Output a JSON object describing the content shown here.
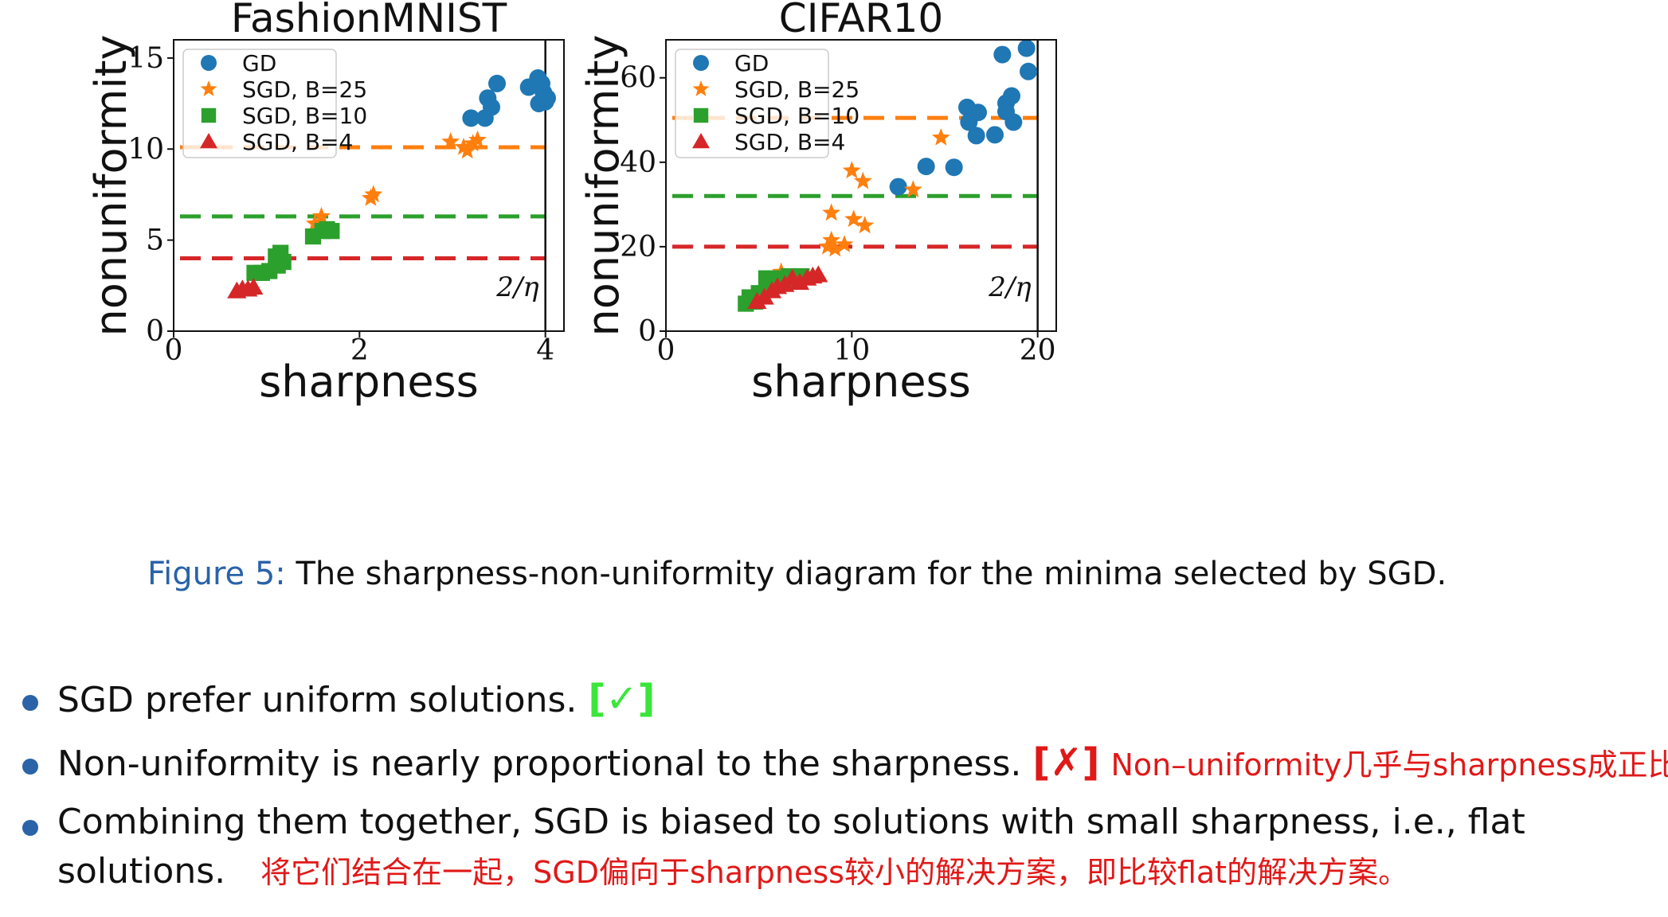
{
  "chart_data": [
    {
      "type": "scatter",
      "title": "FashionMNIST",
      "xlabel": "sharpness",
      "ylabel": "nonuniformity",
      "xlim": [
        0,
        4.2
      ],
      "ylim": [
        0,
        16
      ],
      "xticks": [
        0,
        2,
        4
      ],
      "yticks": [
        0,
        5,
        10,
        15
      ],
      "grid": false,
      "legend_position": "top-left",
      "vline": {
        "x": 4,
        "label": "2/η"
      },
      "hlines": [
        {
          "y": 10.1,
          "color": "#ff7f0e"
        },
        {
          "y": 6.3,
          "color": "#2ca02c"
        },
        {
          "y": 4.0,
          "color": "#d62728"
        }
      ],
      "series": [
        {
          "name": "GD",
          "marker": "circle",
          "color": "#1f77b4",
          "points": [
            [
              3.2,
              11.7
            ],
            [
              3.35,
              11.7
            ],
            [
              3.38,
              12.8
            ],
            [
              3.42,
              12.3
            ],
            [
              3.48,
              13.6
            ],
            [
              3.82,
              13.4
            ],
            [
              3.92,
              13.9
            ],
            [
              3.98,
              13.1
            ],
            [
              4.0,
              12.6
            ],
            [
              3.93,
              12.5
            ],
            [
              3.96,
              13.6
            ],
            [
              4.02,
              12.8
            ]
          ]
        },
        {
          "name": "SGD, B=25",
          "marker": "star",
          "color": "#ff7f0e",
          "points": [
            [
              1.52,
              5.9
            ],
            [
              1.59,
              6.3
            ],
            [
              2.12,
              7.3
            ],
            [
              2.15,
              7.5
            ],
            [
              2.98,
              10.4
            ],
            [
              3.12,
              10.1
            ],
            [
              3.16,
              9.9
            ],
            [
              3.22,
              10.3
            ],
            [
              3.27,
              10.5
            ]
          ]
        },
        {
          "name": "SGD, B=10",
          "marker": "square",
          "color": "#2ca02c",
          "points": [
            [
              0.87,
              3.2
            ],
            [
              0.95,
              3.2
            ],
            [
              1.03,
              3.3
            ],
            [
              1.1,
              4.1
            ],
            [
              1.12,
              3.6
            ],
            [
              1.15,
              4.3
            ],
            [
              1.18,
              3.8
            ],
            [
              1.5,
              5.2
            ],
            [
              1.6,
              5.5
            ],
            [
              1.65,
              5.6
            ],
            [
              1.7,
              5.5
            ]
          ]
        },
        {
          "name": "SGD, B=4",
          "marker": "triangle",
          "color": "#d62728",
          "points": [
            [
              0.68,
              2.2
            ],
            [
              0.74,
              2.3
            ],
            [
              0.8,
              2.3
            ],
            [
              0.86,
              2.4
            ]
          ]
        }
      ]
    },
    {
      "type": "scatter",
      "title": "CIFAR10",
      "xlabel": "sharpness",
      "ylabel": "nonuniformity",
      "xlim": [
        0,
        21
      ],
      "ylim": [
        0,
        69
      ],
      "xticks": [
        0,
        10,
        20
      ],
      "yticks": [
        0,
        20,
        40,
        60
      ],
      "grid": false,
      "legend_position": "top-left",
      "vline": {
        "x": 20,
        "label": "2/η"
      },
      "hlines": [
        {
          "y": 50.5,
          "color": "#ff7f0e"
        },
        {
          "y": 32,
          "color": "#2ca02c"
        },
        {
          "y": 20,
          "color": "#d62728"
        }
      ],
      "series": [
        {
          "name": "GD",
          "marker": "circle",
          "color": "#1f77b4",
          "points": [
            [
              12.5,
              34.2
            ],
            [
              14,
              39
            ],
            [
              15.5,
              38.8
            ],
            [
              16.2,
              53
            ],
            [
              16.3,
              49.5
            ],
            [
              16.7,
              46.3
            ],
            [
              16.8,
              51.8
            ],
            [
              17.7,
              46.5
            ],
            [
              18.1,
              65.5
            ],
            [
              18.3,
              54
            ],
            [
              18.3,
              52
            ],
            [
              18.6,
              55.7
            ],
            [
              18.7,
              49.5
            ],
            [
              19.4,
              67
            ],
            [
              19.5,
              61.5
            ]
          ]
        },
        {
          "name": "SGD, B=25",
          "marker": "star",
          "color": "#ff7f0e",
          "points": [
            [
              6.2,
              14
            ],
            [
              8.7,
              20
            ],
            [
              8.9,
              21.5
            ],
            [
              9.1,
              19.5
            ],
            [
              9.6,
              20.5
            ],
            [
              8.9,
              28
            ],
            [
              10,
              38
            ],
            [
              10.6,
              35.5
            ],
            [
              10.1,
              26.5
            ],
            [
              10.7,
              25
            ],
            [
              13.3,
              33.5
            ],
            [
              14.8,
              45.8
            ]
          ]
        },
        {
          "name": "SGD, B=10",
          "marker": "square",
          "color": "#2ca02c",
          "points": [
            [
              4.3,
              6.5
            ],
            [
              4.5,
              8
            ],
            [
              4.8,
              7
            ],
            [
              5.0,
              9
            ],
            [
              5.2,
              8.5
            ],
            [
              5.4,
              12.5
            ],
            [
              5.6,
              10
            ],
            [
              5.9,
              11.5
            ],
            [
              6.2,
              12.5
            ],
            [
              6.6,
              13
            ],
            [
              7,
              12
            ],
            [
              7.3,
              13
            ]
          ]
        },
        {
          "name": "SGD, B=4",
          "marker": "triangle",
          "color": "#d62728",
          "points": [
            [
              4.9,
              7
            ],
            [
              5.3,
              8
            ],
            [
              5.7,
              9.5
            ],
            [
              6.0,
              10.5
            ],
            [
              6.4,
              11
            ],
            [
              6.8,
              12.5
            ],
            [
              7.2,
              11.5
            ],
            [
              7.6,
              12.5
            ],
            [
              7.9,
              13
            ],
            [
              8.2,
              13.3
            ]
          ]
        }
      ]
    }
  ],
  "caption": {
    "label": "Figure 5:",
    "text": "The sharpness-non-uniformity diagram for the minima selected by SGD."
  },
  "bullets": [
    {
      "text": "SGD prefer uniform solutions.",
      "mark": "[✓]",
      "note": ""
    },
    {
      "text": "Non-uniformity is nearly proportional to the sharpness.",
      "mark": "[✗]",
      "note": "Non–uniformity几乎与sharpness成正比。"
    },
    {
      "text": "Combining them together, SGD is biased to solutions with small sharpness, i.e., flat",
      "text2": "solutions.",
      "mark": "",
      "note": "将它们结合在一起，SGD偏向于sharpness较小的解决方案，即比较flat的解决方案。"
    }
  ]
}
